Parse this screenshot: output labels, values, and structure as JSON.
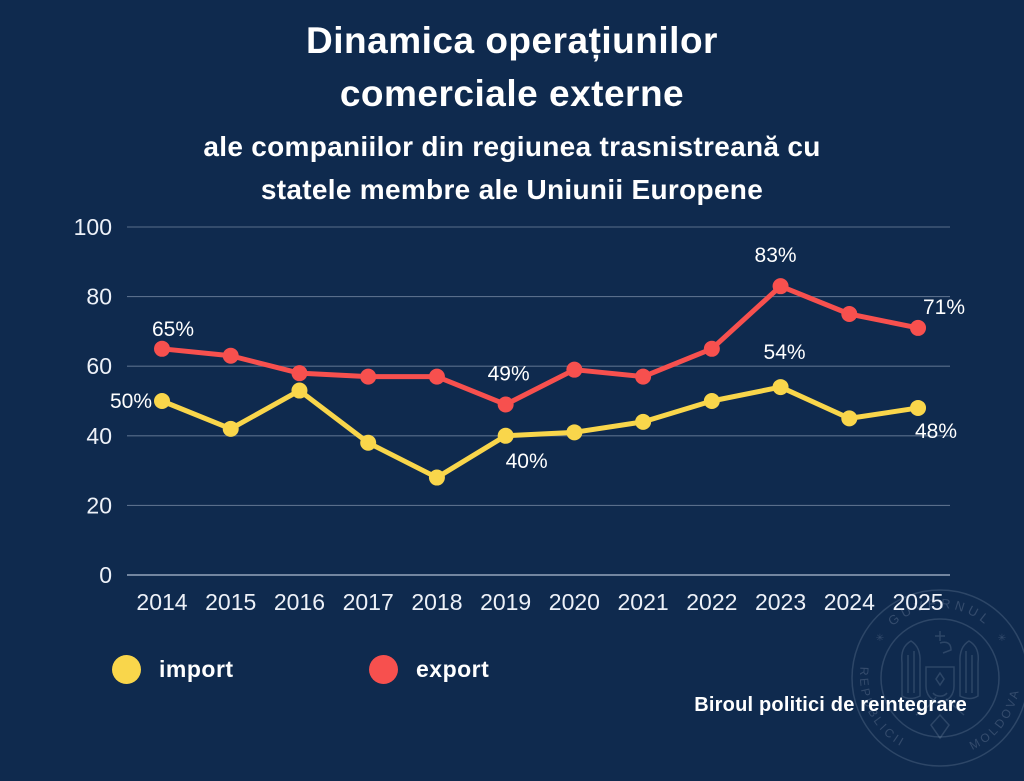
{
  "title": {
    "line1": "Dinamica operațiunilor",
    "line2": "comerciale externe"
  },
  "subtitle": {
    "line1": "ale companiilor din regiunea trasnistreană cu",
    "line2": "statele membre ale Uniunii Europene"
  },
  "footer": {
    "credit": "Biroul politici de reintegrare"
  },
  "watermark": {
    "top_text": "GUVERNUL",
    "bottom_left_text": "REPUBLICII",
    "bottom_right_text": "MOLDOVA",
    "star_left": "✳",
    "star_right": "✳"
  },
  "colors": {
    "background": "#0F2A4E",
    "import": "#F9D64B",
    "export": "#F7504E",
    "text": "#FFFFFF",
    "tick_text": "#EDF1F8",
    "grid": "rgba(193,206,224,0.42)",
    "axis_base": "rgba(193,206,224,0.75)"
  },
  "legend": {
    "items": [
      {
        "label": "import",
        "color": "#F9D64B"
      },
      {
        "label": "export",
        "color": "#F7504E"
      }
    ]
  },
  "chart_data": {
    "type": "line",
    "x": [
      2014,
      2015,
      2016,
      2017,
      2018,
      2019,
      2020,
      2021,
      2022,
      2023,
      2024,
      2025
    ],
    "ylim": [
      0,
      100
    ],
    "yticks": [
      0,
      20,
      40,
      60,
      80,
      100
    ],
    "grid": true,
    "legend_position": "bottom-left",
    "series": [
      {
        "name": "import",
        "color": "#F9D64B",
        "values": [
          50,
          42,
          53,
          38,
          28,
          40,
          41,
          44,
          50,
          54,
          45,
          48
        ],
        "point_labels": [
          {
            "index": 0,
            "text": "50%",
            "dx": -31,
            "dy": 7
          },
          {
            "index": 5,
            "text": "40%",
            "dx": 21,
            "dy": 32
          },
          {
            "index": 9,
            "text": "54%",
            "dx": 4,
            "dy": -28
          },
          {
            "index": 11,
            "text": "48%",
            "dx": 18,
            "dy": 30
          }
        ]
      },
      {
        "name": "export",
        "color": "#F7504E",
        "values": [
          65,
          63,
          58,
          57,
          57,
          49,
          59,
          57,
          65,
          83,
          75,
          71
        ],
        "point_labels": [
          {
            "index": 0,
            "text": "65%",
            "dx": 11,
            "dy": -13
          },
          {
            "index": 5,
            "text": "49%",
            "dx": 3,
            "dy": -24
          },
          {
            "index": 9,
            "text": "83%",
            "dx": -5,
            "dy": -24
          },
          {
            "index": 11,
            "text": "71%",
            "dx": 26,
            "dy": -14
          }
        ]
      }
    ]
  }
}
